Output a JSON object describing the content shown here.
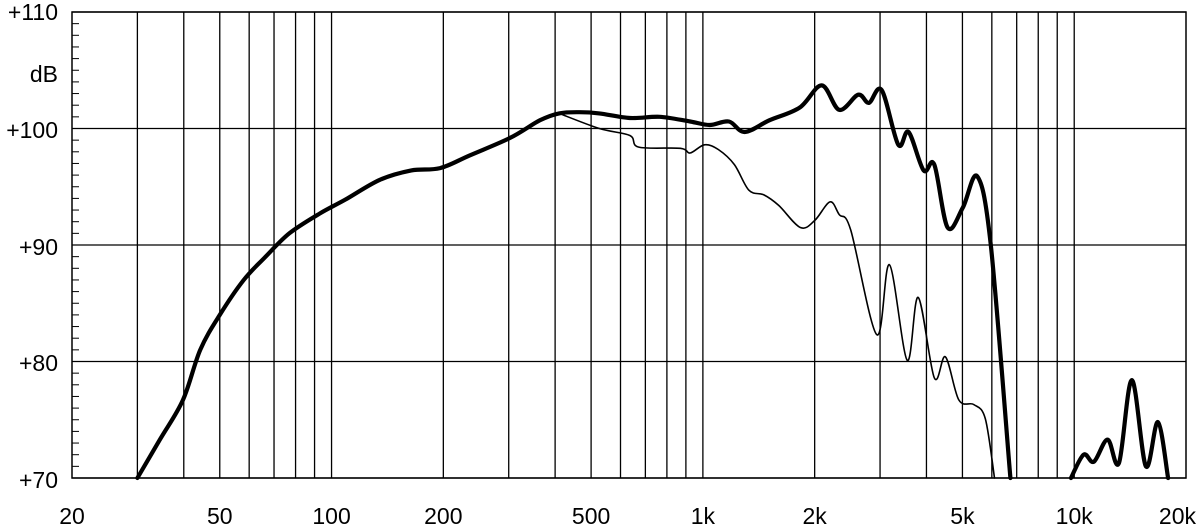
{
  "chart_data": {
    "type": "line",
    "title": "",
    "xlabel": "",
    "ylabel": "dB",
    "x_scale": "log",
    "xlim": [
      20,
      20000
    ],
    "ylim": [
      70,
      110
    ],
    "grid": true,
    "x_tick_labels": [
      "20",
      "50",
      "100",
      "200",
      "500",
      "1k",
      "2k",
      "5k",
      "10k",
      "20k"
    ],
    "x_tick_values": [
      20,
      50,
      100,
      200,
      500,
      1000,
      2000,
      5000,
      10000,
      20000
    ],
    "y_tick_labels": [
      "+110",
      "+100",
      "+90",
      "+80",
      "+70"
    ],
    "y_tick_values": [
      110,
      100,
      90,
      80,
      70
    ],
    "series": [
      {
        "style": "thick",
        "color": "#000000",
        "segments": [
          [
            [
              30,
              70
            ],
            [
              34.5,
              73.3
            ],
            [
              39.8,
              76.7
            ],
            [
              44.3,
              81
            ],
            [
              50,
              84
            ],
            [
              58,
              87
            ],
            [
              66,
              88.9
            ],
            [
              77,
              91
            ],
            [
              93,
              92.7
            ],
            [
              109,
              93.9
            ],
            [
              135,
              95.6
            ],
            [
              164,
              96.4
            ],
            [
              196,
              96.6
            ],
            [
              236,
              97.7
            ],
            [
              303,
              99.2
            ],
            [
              364,
              100.7
            ],
            [
              410,
              101.3
            ],
            [
              466,
              101.4
            ],
            [
              526,
              101.3
            ],
            [
              636,
              100.9
            ],
            [
              765,
              101.0
            ],
            [
              924,
              100.6
            ],
            [
              1043,
              100.3
            ],
            [
              1175,
              100.6
            ],
            [
              1296,
              99.7
            ],
            [
              1510,
              100.7
            ],
            [
              1824,
              101.8
            ],
            [
              2090,
              103.7
            ],
            [
              2330,
              101.6
            ],
            [
              2620,
              102.9
            ],
            [
              2800,
              102.2
            ],
            [
              3030,
              103.3
            ],
            [
              3360,
              98.6
            ],
            [
              3580,
              99.7
            ],
            [
              3930,
              96.4
            ],
            [
              4200,
              96.9
            ],
            [
              4560,
              91.5
            ],
            [
              5010,
              93.2
            ],
            [
              5480,
              95.9
            ],
            [
              5960,
              90
            ],
            [
              6730,
              70
            ]
          ],
          [
            [
              9800,
              70
            ],
            [
              10600,
              72
            ],
            [
              11300,
              71.4
            ],
            [
              12300,
              73.3
            ],
            [
              13200,
              71.3
            ],
            [
              14300,
              78.4
            ],
            [
              15600,
              71
            ],
            [
              16800,
              74.8
            ],
            [
              17900,
              70
            ]
          ]
        ]
      },
      {
        "style": "thin",
        "color": "#000000",
        "segments": [
          [
            [
              410,
              101.3
            ],
            [
              526,
              100
            ],
            [
              636,
              99.4
            ],
            [
              672,
              98.4
            ],
            [
              870,
              98.3
            ],
            [
              924,
              97.9
            ],
            [
              1010,
              98.6
            ],
            [
              1100,
              98.2
            ],
            [
              1216,
              96.9
            ],
            [
              1330,
              94.7
            ],
            [
              1460,
              94.3
            ],
            [
              1600,
              93.4
            ],
            [
              1830,
              91.5
            ],
            [
              2000,
              92.1
            ],
            [
              2200,
              93.7
            ],
            [
              2330,
              92.6
            ],
            [
              2500,
              91.3
            ],
            [
              2940,
              82.3
            ],
            [
              3180,
              88.3
            ],
            [
              3550,
              80.1
            ],
            [
              3800,
              85.5
            ],
            [
              4200,
              78.6
            ],
            [
              4500,
              80.4
            ],
            [
              4890,
              76.7
            ],
            [
              5370,
              76.3
            ],
            [
              5760,
              75.1
            ],
            [
              6100,
              70
            ]
          ]
        ]
      }
    ]
  }
}
